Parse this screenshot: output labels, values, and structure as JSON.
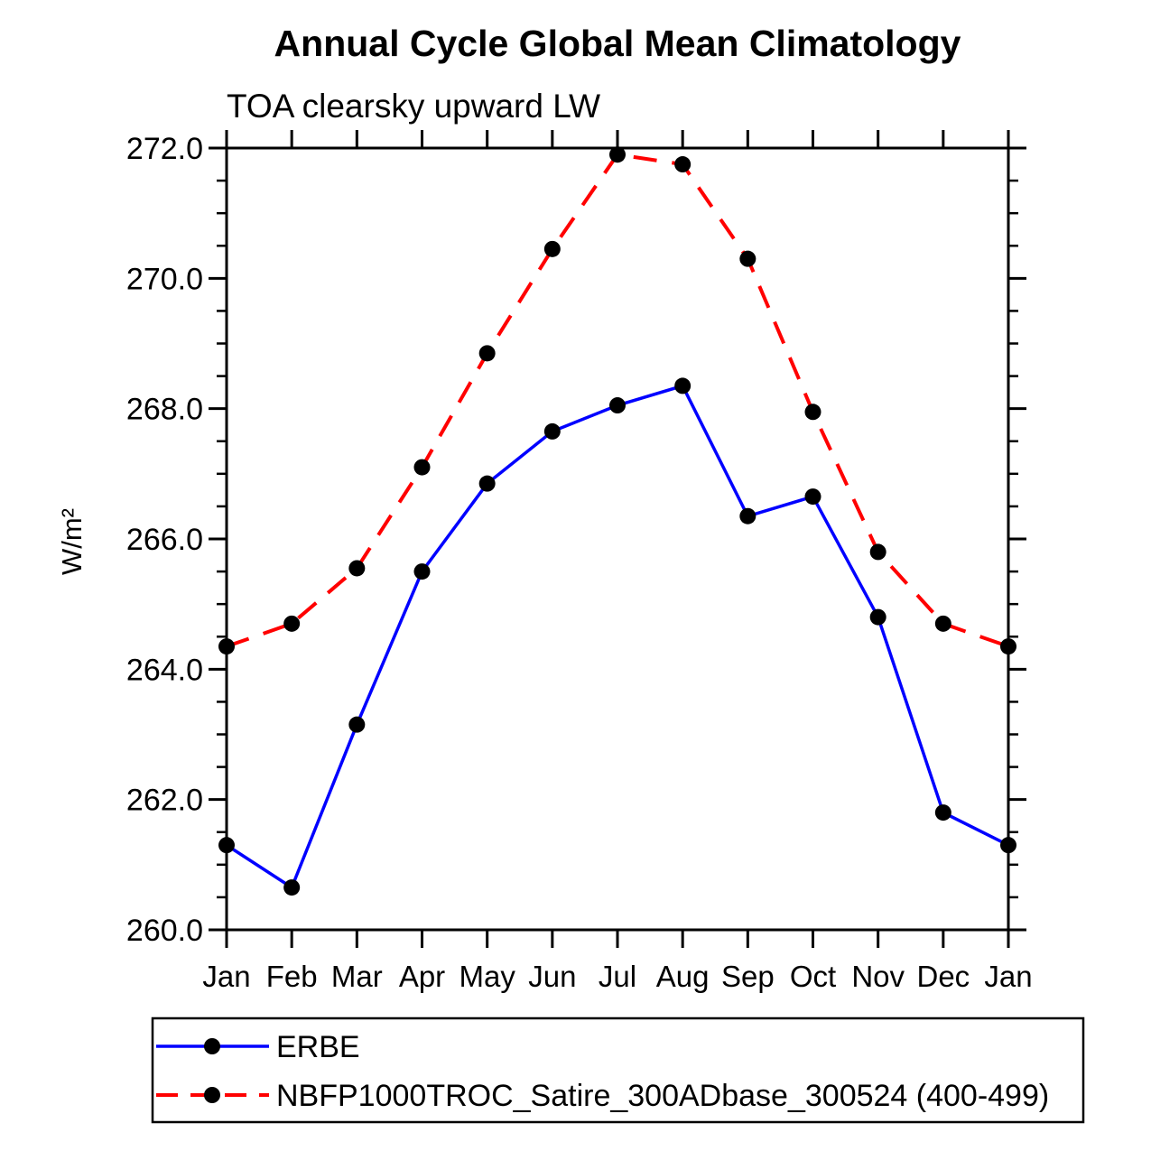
{
  "chart_data": {
    "type": "line",
    "title": "Annual Cycle Global Mean Climatology",
    "subtitle": "TOA clearsky upward LW",
    "ylabel": "W/m²",
    "xlabel": "",
    "categories": [
      "Jan",
      "Feb",
      "Mar",
      "Apr",
      "May",
      "Jun",
      "Jul",
      "Aug",
      "Sep",
      "Oct",
      "Nov",
      "Dec",
      "Jan"
    ],
    "ylim": [
      260.0,
      272.0
    ],
    "ytick_major_step": 2.0,
    "ytick_minor_step": 0.5,
    "ytick_labels": [
      "260.0",
      "262.0",
      "264.0",
      "266.0",
      "268.0",
      "270.0",
      "272.0"
    ],
    "grid": false,
    "legend_position": "bottom",
    "series": [
      {
        "name": "ERBE",
        "color": "#0000ff",
        "line_style": "solid",
        "marker": "circle",
        "marker_color": "#000000",
        "values": [
          261.3,
          260.65,
          263.15,
          265.5,
          266.85,
          267.65,
          268.05,
          268.35,
          266.35,
          266.65,
          264.8,
          261.8,
          261.3
        ]
      },
      {
        "name": "NBFP1000TROC_Satire_300ADbase_300524 (400-499)",
        "color": "#ff0000",
        "line_style": "dashed",
        "marker": "circle",
        "marker_color": "#000000",
        "values": [
          264.35,
          264.7,
          265.55,
          267.1,
          268.85,
          270.45,
          271.9,
          271.75,
          270.3,
          267.95,
          265.8,
          264.7,
          264.35
        ]
      }
    ]
  }
}
